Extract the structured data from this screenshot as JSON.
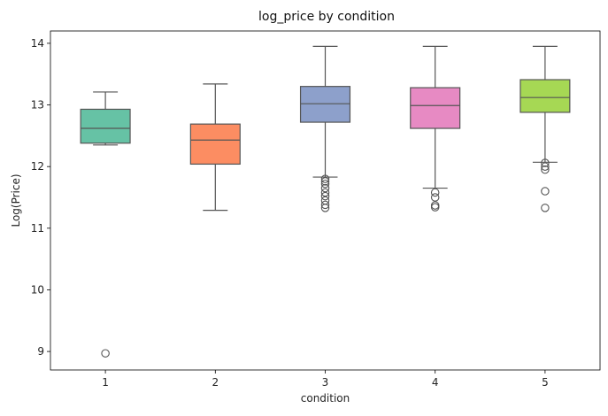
{
  "chart_data": {
    "type": "box",
    "title": "log_price by condition",
    "xlabel": "condition",
    "ylabel": "Log(Price)",
    "ylim": [
      8.7,
      14.2
    ],
    "yticks": [
      9,
      10,
      11,
      12,
      13,
      14
    ],
    "grid": false,
    "categories": [
      "1",
      "2",
      "3",
      "4",
      "5"
    ],
    "colors": [
      "#66c2a5",
      "#fc8d62",
      "#8da0cb",
      "#e78ac3",
      "#a6d854"
    ],
    "boxes": [
      {
        "category": "1",
        "whisker_low": 12.35,
        "q1": 12.38,
        "median": 12.62,
        "q3": 12.93,
        "whisker_high": 13.21,
        "outliers": [
          8.97
        ]
      },
      {
        "category": "2",
        "whisker_low": 11.29,
        "q1": 12.04,
        "median": 12.43,
        "q3": 12.69,
        "whisker_high": 13.34,
        "outliers": []
      },
      {
        "category": "3",
        "whisker_low": 11.83,
        "q1": 12.72,
        "median": 13.02,
        "q3": 13.3,
        "whisker_high": 13.95,
        "outliers": [
          11.8,
          11.76,
          11.72,
          11.65,
          11.58,
          11.52,
          11.45,
          11.38,
          11.33
        ]
      },
      {
        "category": "4",
        "whisker_low": 11.65,
        "q1": 12.62,
        "median": 12.99,
        "q3": 13.28,
        "whisker_high": 13.95,
        "outliers": [
          11.58,
          11.5,
          11.37,
          11.34
        ]
      },
      {
        "category": "5",
        "whisker_low": 12.07,
        "q1": 12.88,
        "median": 13.12,
        "q3": 13.41,
        "whisker_high": 13.95,
        "outliers": [
          12.06,
          12.0,
          11.95,
          11.6,
          11.33
        ]
      }
    ]
  }
}
